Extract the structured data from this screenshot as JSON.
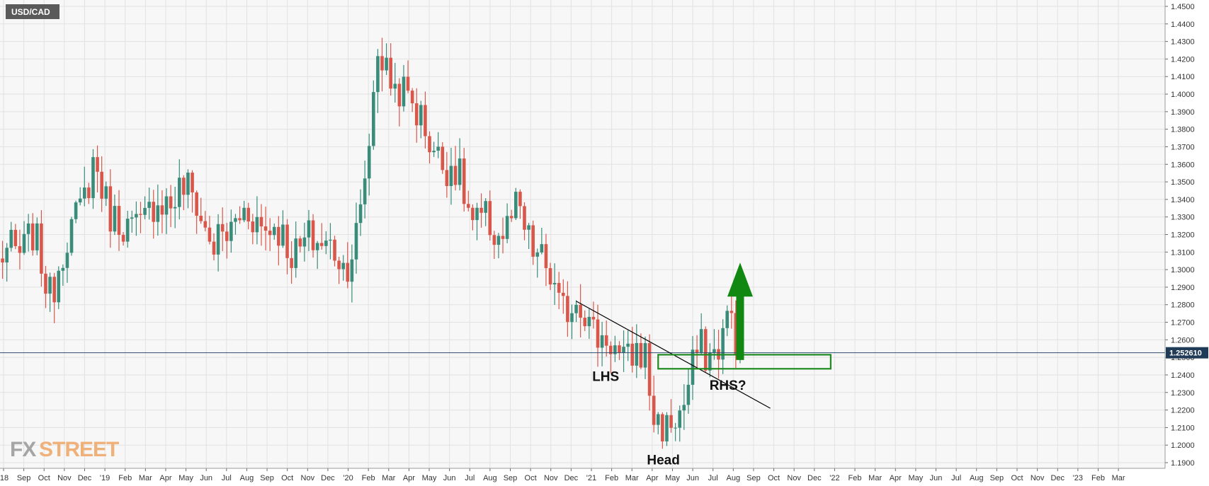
{
  "symbol_badge": "USD/CAD",
  "current_price_label": "1.252610",
  "logo": {
    "part1": "FX",
    "part2": "STREET"
  },
  "annotations": {
    "lhs": "LHS",
    "head": "Head",
    "rhs": "RHS?"
  },
  "colors": {
    "bull": "#3a8c7a",
    "bear": "#d9574a",
    "grid": "#e2e2e2",
    "trendline": "#000000",
    "zone": "#1f8a1f",
    "arrow": "#118811",
    "price_line": "#2c4a6e",
    "price_badge": "#1f3b57",
    "symbol_badge": "#5a5a5a"
  },
  "chart_data": {
    "type": "candlestick",
    "timeframe": "weekly",
    "ylim": [
      1.186,
      1.455
    ],
    "y_ticks": [
      "1.1900",
      "1.2000",
      "1.2100",
      "1.2200",
      "1.2300",
      "1.2400",
      "1.2500",
      "1.2600",
      "1.2700",
      "1.2800",
      "1.2900",
      "1.3000",
      "1.3100",
      "1.3200",
      "1.3300",
      "1.3400",
      "1.3500",
      "1.3600",
      "1.3700",
      "1.3800",
      "1.3900",
      "1.4000",
      "1.4100",
      "1.4200",
      "1.4300",
      "1.4400",
      "1.4500"
    ],
    "x_labels": [
      "'18",
      "Sep",
      "Oct",
      "Nov",
      "Dec",
      "'19",
      "Feb",
      "Mar",
      "Apr",
      "May",
      "Jun",
      "Jul",
      "Aug",
      "Sep",
      "Oct",
      "Nov",
      "Dec",
      "'20",
      "Feb",
      "Mar",
      "Apr",
      "May",
      "Jun",
      "Jul",
      "Aug",
      "Sep",
      "Oct",
      "Nov",
      "Dec",
      "'21",
      "Feb",
      "Mar",
      "Apr",
      "May",
      "Jun",
      "Jul",
      "Aug",
      "Sep",
      "Oct",
      "Nov",
      "Dec",
      "'22",
      "Feb",
      "Mar",
      "Apr",
      "May",
      "Jun",
      "Jul",
      "Aug",
      "Sep",
      "Oct",
      "Nov",
      "Dec",
      "'23",
      "Feb",
      "Mar"
    ],
    "current_price": 1.25261,
    "keypoints": [
      [
        0,
        1.304
      ],
      [
        8,
        1.318
      ],
      [
        12,
        1.288
      ],
      [
        18,
        1.33
      ],
      [
        22,
        1.358
      ],
      [
        25,
        1.34
      ],
      [
        30,
        1.32
      ],
      [
        36,
        1.335
      ],
      [
        42,
        1.345
      ],
      [
        46,
        1.34
      ],
      [
        50,
        1.31
      ],
      [
        55,
        1.33
      ],
      [
        60,
        1.33
      ],
      [
        65,
        1.32
      ],
      [
        70,
        1.31
      ],
      [
        75,
        1.32
      ],
      [
        80,
        1.3
      ],
      [
        84,
        1.33
      ],
      [
        86,
        1.37
      ],
      [
        88,
        1.43
      ],
      [
        92,
        1.4
      ],
      [
        96,
        1.4
      ],
      [
        100,
        1.37
      ],
      [
        105,
        1.36
      ],
      [
        110,
        1.33
      ],
      [
        115,
        1.32
      ],
      [
        120,
        1.33
      ],
      [
        125,
        1.31
      ],
      [
        130,
        1.28
      ],
      [
        135,
        1.28
      ],
      [
        140,
        1.26
      ],
      [
        145,
        1.25
      ],
      [
        150,
        1.25
      ],
      [
        152,
        1.22
      ],
      [
        155,
        1.205
      ],
      [
        158,
        1.22
      ],
      [
        162,
        1.25
      ],
      [
        166,
        1.255
      ],
      [
        170,
        1.27
      ],
      [
        172,
        1.255
      ]
    ],
    "trendline": {
      "from": {
        "week": 134,
        "price": 1.282
      },
      "to": {
        "week": 179,
        "price": 1.221
      }
    },
    "support_zone": {
      "from_week": 153,
      "to_week": 193,
      "low": 1.2435,
      "high": 1.2515
    },
    "target_arrow": {
      "week": 172,
      "base": 1.2485,
      "tip": 1.304
    },
    "labeled_points": {
      "lhs": {
        "week": 141,
        "price": 1.239
      },
      "head": {
        "week": 154,
        "price": 1.1915
      },
      "rhs": {
        "week": 169,
        "price": 1.234
      }
    }
  }
}
